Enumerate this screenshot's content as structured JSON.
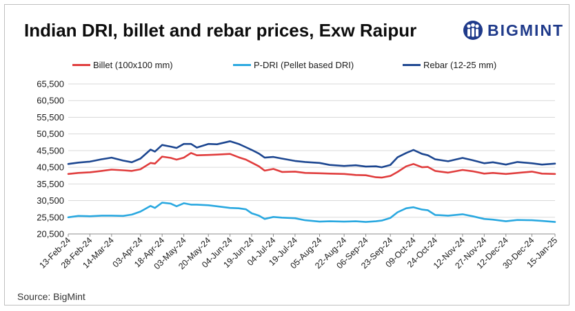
{
  "header": {
    "title": "Indian DRI, billet and rebar prices, Exw Raipur",
    "brand": "BIGMINT",
    "brand_color": "#1f3a8a",
    "logo_icon": "people-logo-icon"
  },
  "footer": {
    "source": "Source: BigMint"
  },
  "chart_data": {
    "type": "line",
    "title": "Indian DRI, billet and rebar prices, Exw Raipur",
    "xlabel": "",
    "ylabel": "",
    "ylim": [
      20500,
      65500
    ],
    "yticks": [
      20500,
      25500,
      30500,
      35500,
      40500,
      45500,
      50500,
      55500,
      60500,
      65500
    ],
    "ytick_labels": [
      "20,500",
      "25,500",
      "30,500",
      "35,500",
      "40,500",
      "45,500",
      "50,500",
      "55,500",
      "60,500",
      "65,500"
    ],
    "x_range": [
      "2024-02-13",
      "2025-01-15"
    ],
    "x_ticks": [
      "2024-02-13",
      "2024-02-28",
      "2024-03-14",
      "2024-04-03",
      "2024-04-18",
      "2024-05-03",
      "2024-05-20",
      "2024-06-04",
      "2024-06-19",
      "2024-07-04",
      "2024-07-19",
      "2024-08-05",
      "2024-08-22",
      "2024-09-06",
      "2024-09-23",
      "2024-10-09",
      "2024-10-24",
      "2024-11-12",
      "2024-11-27",
      "2024-12-12",
      "2024-12-30",
      "2025-01-15"
    ],
    "x_tick_labels": [
      "13-Feb-24",
      "28-Feb-24",
      "14-Mar-24",
      "03-Apr-24",
      "18-Apr-24",
      "03-May-24",
      "20-May-24",
      "04-Jun-24",
      "19-Jun-24",
      "04-Jul-24",
      "19-Jul-24",
      "05-Aug-24",
      "22-Aug-24",
      "06-Sep-24",
      "23-Sep-24",
      "09-Oct-24",
      "24-Oct-24",
      "12-Nov-24",
      "27-Nov-24",
      "12-Dec-24",
      "30-Dec-24",
      "15-Jan-25"
    ],
    "grid": true,
    "legend_position": "top",
    "series": [
      {
        "name": "Billet (100x100 mm)",
        "color": "#e03c3c",
        "x": [
          "2024-02-13",
          "2024-02-20",
          "2024-02-28",
          "2024-03-07",
          "2024-03-14",
          "2024-03-22",
          "2024-03-28",
          "2024-04-03",
          "2024-04-10",
          "2024-04-13",
          "2024-04-18",
          "2024-04-24",
          "2024-04-28",
          "2024-05-03",
          "2024-05-08",
          "2024-05-12",
          "2024-05-20",
          "2024-05-26",
          "2024-06-04",
          "2024-06-10",
          "2024-06-15",
          "2024-06-19",
          "2024-06-24",
          "2024-06-28",
          "2024-07-04",
          "2024-07-10",
          "2024-07-19",
          "2024-07-26",
          "2024-08-05",
          "2024-08-12",
          "2024-08-22",
          "2024-08-30",
          "2024-09-06",
          "2024-09-13",
          "2024-09-17",
          "2024-09-23",
          "2024-09-28",
          "2024-10-04",
          "2024-10-09",
          "2024-10-15",
          "2024-10-19",
          "2024-10-24",
          "2024-11-02",
          "2024-11-12",
          "2024-11-19",
          "2024-11-27",
          "2024-12-03",
          "2024-12-12",
          "2024-12-20",
          "2024-12-30",
          "2025-01-06",
          "2025-01-15"
        ],
        "values": [
          38500,
          38800,
          39000,
          39400,
          39800,
          39600,
          39400,
          39900,
          41800,
          41600,
          43700,
          43300,
          42800,
          43400,
          44800,
          44100,
          44200,
          44300,
          44500,
          43500,
          42800,
          41900,
          40800,
          39500,
          40000,
          39100,
          39200,
          38800,
          38700,
          38600,
          38500,
          38200,
          38100,
          37500,
          37400,
          37900,
          39100,
          40800,
          41500,
          40500,
          40600,
          39400,
          38900,
          39700,
          39300,
          38600,
          38800,
          38500,
          38800,
          39200,
          38600,
          38500
        ]
      },
      {
        "name": "P-DRI (Pellet based DRI)",
        "color": "#29a8e0",
        "x": [
          "2024-02-13",
          "2024-02-20",
          "2024-02-28",
          "2024-03-07",
          "2024-03-14",
          "2024-03-22",
          "2024-03-28",
          "2024-04-03",
          "2024-04-10",
          "2024-04-13",
          "2024-04-18",
          "2024-04-24",
          "2024-04-28",
          "2024-05-03",
          "2024-05-08",
          "2024-05-12",
          "2024-05-20",
          "2024-05-26",
          "2024-06-04",
          "2024-06-10",
          "2024-06-15",
          "2024-06-19",
          "2024-06-24",
          "2024-06-28",
          "2024-07-04",
          "2024-07-10",
          "2024-07-19",
          "2024-07-26",
          "2024-08-05",
          "2024-08-12",
          "2024-08-22",
          "2024-08-30",
          "2024-09-06",
          "2024-09-13",
          "2024-09-17",
          "2024-09-23",
          "2024-09-28",
          "2024-10-04",
          "2024-10-09",
          "2024-10-15",
          "2024-10-19",
          "2024-10-24",
          "2024-11-02",
          "2024-11-12",
          "2024-11-19",
          "2024-11-27",
          "2024-12-03",
          "2024-12-12",
          "2024-12-20",
          "2024-12-30",
          "2025-01-06",
          "2025-01-15"
        ],
        "values": [
          25500,
          25900,
          25800,
          26000,
          26000,
          25900,
          26300,
          27200,
          28900,
          28300,
          29900,
          29600,
          28800,
          29700,
          29300,
          29300,
          29100,
          28800,
          28300,
          28200,
          27900,
          26700,
          26000,
          25000,
          25600,
          25400,
          25200,
          24600,
          24200,
          24300,
          24200,
          24300,
          24100,
          24300,
          24500,
          25300,
          27000,
          28200,
          28500,
          27800,
          27600,
          26200,
          26000,
          26400,
          25800,
          25000,
          24800,
          24300,
          24700,
          24600,
          24400,
          24100
        ]
      },
      {
        "name": "Rebar (12-25 mm)",
        "color": "#1c4690",
        "x": [
          "2024-02-13",
          "2024-02-20",
          "2024-02-28",
          "2024-03-07",
          "2024-03-14",
          "2024-03-22",
          "2024-03-28",
          "2024-04-03",
          "2024-04-10",
          "2024-04-13",
          "2024-04-18",
          "2024-04-24",
          "2024-04-28",
          "2024-05-03",
          "2024-05-08",
          "2024-05-12",
          "2024-05-20",
          "2024-05-26",
          "2024-06-04",
          "2024-06-10",
          "2024-06-15",
          "2024-06-19",
          "2024-06-24",
          "2024-06-28",
          "2024-07-04",
          "2024-07-10",
          "2024-07-19",
          "2024-07-26",
          "2024-08-05",
          "2024-08-12",
          "2024-08-22",
          "2024-08-30",
          "2024-09-06",
          "2024-09-13",
          "2024-09-17",
          "2024-09-23",
          "2024-09-28",
          "2024-10-04",
          "2024-10-09",
          "2024-10-15",
          "2024-10-19",
          "2024-10-24",
          "2024-11-02",
          "2024-11-12",
          "2024-11-19",
          "2024-11-27",
          "2024-12-03",
          "2024-12-12",
          "2024-12-20",
          "2024-12-30",
          "2025-01-06",
          "2025-01-15"
        ],
        "values": [
          41500,
          41900,
          42200,
          42900,
          43400,
          42500,
          42000,
          43100,
          45800,
          45200,
          47200,
          46700,
          46300,
          47500,
          47500,
          46400,
          47500,
          47400,
          48300,
          47500,
          46500,
          45700,
          44600,
          43400,
          43600,
          43100,
          42400,
          42100,
          41800,
          41200,
          40900,
          41100,
          40700,
          40800,
          40500,
          41200,
          43500,
          44800,
          45700,
          44500,
          44100,
          42900,
          42300,
          43300,
          42600,
          41700,
          42000,
          41300,
          42100,
          41700,
          41300,
          41600
        ]
      }
    ]
  }
}
